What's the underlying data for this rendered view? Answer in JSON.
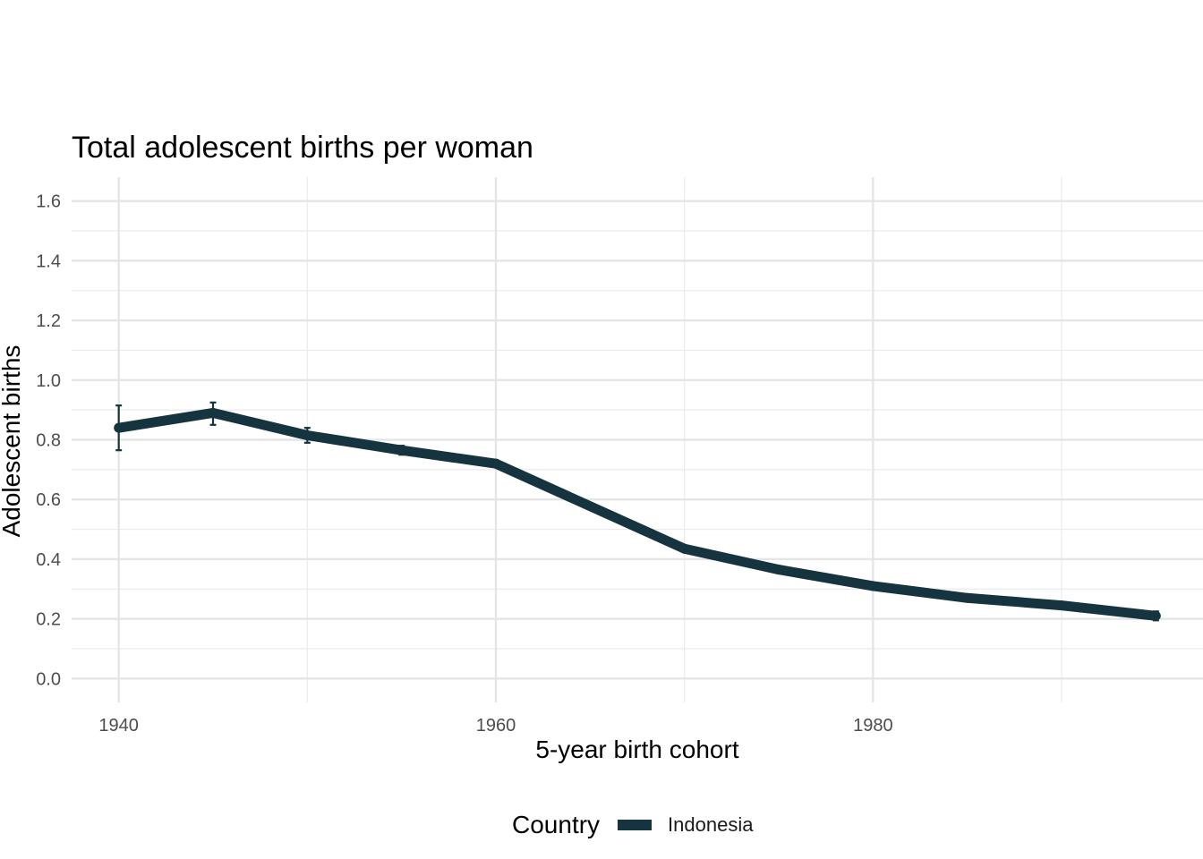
{
  "chart_data": {
    "type": "line",
    "title": "Total adolescent births per woman",
    "xlabel": "5-year birth cohort",
    "ylabel": "Adolescent births",
    "xlim": [
      1937.5,
      1997.5
    ],
    "ylim": [
      -0.08,
      1.68
    ],
    "x_ticks": [
      1940,
      1960,
      1980
    ],
    "x_minor": [
      1950,
      1970,
      1990
    ],
    "y_ticks": [
      0.0,
      0.2,
      0.4,
      0.6,
      0.8,
      1.0,
      1.2,
      1.4,
      1.6
    ],
    "y_tick_labels": [
      "0.0",
      "0.2",
      "0.4",
      "0.6",
      "0.8",
      "1.0",
      "1.2",
      "1.4",
      "1.6"
    ],
    "legend_title": "Country",
    "legend_position": "bottom",
    "series": [
      {
        "name": "Indonesia",
        "color": "#15343f",
        "x": [
          1940,
          1945,
          1950,
          1955,
          1960,
          1970,
          1975,
          1980,
          1985,
          1990,
          1995
        ],
        "values": [
          0.84,
          0.89,
          0.815,
          0.765,
          0.72,
          0.435,
          0.365,
          0.31,
          0.27,
          0.245,
          0.21
        ],
        "error_low": [
          0.765,
          0.85,
          0.79,
          0.75,
          0.71,
          null,
          null,
          null,
          null,
          null,
          0.195
        ],
        "error_high": [
          0.915,
          0.925,
          0.84,
          0.78,
          0.73,
          null,
          null,
          null,
          null,
          null,
          0.225
        ]
      }
    ]
  }
}
